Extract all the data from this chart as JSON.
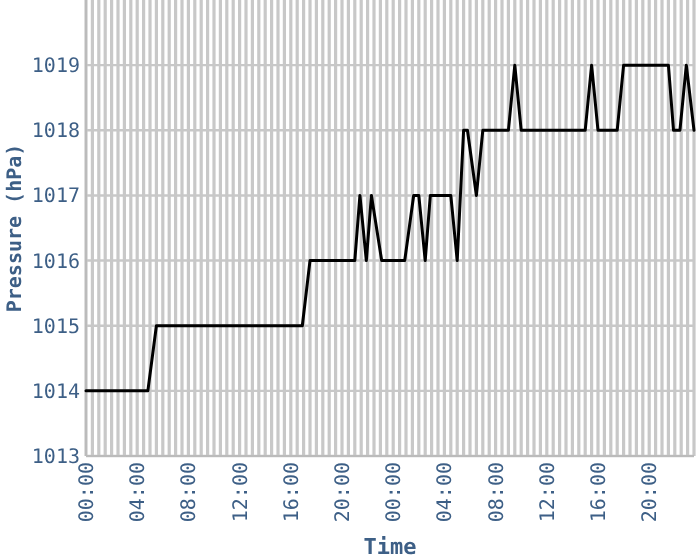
{
  "chart_data": {
    "type": "line",
    "xlabel": "Time",
    "ylabel": "Pressure (hPa)",
    "x": [
      "2000-01-01T00:00",
      "2000-01-01T04:50",
      "2000-01-01T05:30",
      "2000-01-01T16:54",
      "2000-01-01T17:30",
      "2000-01-01T21:00",
      "2000-01-01T21:24",
      "2000-01-01T21:54",
      "2000-01-01T22:18",
      "2000-01-01T23:06",
      "2000-01-02T00:54",
      "2000-01-02T01:36",
      "2000-01-02T02:00",
      "2000-01-02T02:30",
      "2000-01-02T02:54",
      "2000-01-02T04:30",
      "2000-01-02T05:00",
      "2000-01-02T05:30",
      "2000-01-02T05:48",
      "2000-01-02T06:30",
      "2000-01-02T07:00",
      "2000-01-02T09:00",
      "2000-01-02T09:30",
      "2000-01-02T10:00",
      "2000-01-02T15:00",
      "2000-01-02T15:30",
      "2000-01-02T16:00",
      "2000-01-02T17:30",
      "2000-01-02T18:00",
      "2000-01-02T21:30",
      "2000-01-02T21:54",
      "2000-01-02T22:24",
      "2000-01-02T22:54",
      "2000-01-02T23:30"
    ],
    "series": [
      {
        "color": "#000000",
        "values": [
          1014,
          1014,
          1015,
          1015,
          1016,
          1016,
          1017,
          1016,
          1017,
          1016,
          1016,
          1017,
          1017,
          1016,
          1017,
          1017,
          1016,
          1018,
          1018,
          1017,
          1018,
          1018,
          1019,
          1018,
          1018,
          1019,
          1018,
          1018,
          1019,
          1019,
          1018,
          1018,
          1019,
          1018
        ]
      }
    ],
    "xlim": [
      "2000-01-01T00:00",
      "2000-01-02T23:30"
    ],
    "xticks": [
      {
        "value": "2000-01-01T00:00",
        "label": "00:00"
      },
      {
        "value": "2000-01-01T00:30",
        "label": null
      },
      {
        "value": "2000-01-01T01:00",
        "label": null
      },
      {
        "value": "2000-01-01T01:30",
        "label": null
      },
      {
        "value": "2000-01-01T02:00",
        "label": null
      },
      {
        "value": "2000-01-01T02:30",
        "label": null
      },
      {
        "value": "2000-01-01T03:00",
        "label": null
      },
      {
        "value": "2000-01-01T03:30",
        "label": null
      },
      {
        "value": "2000-01-01T04:00",
        "label": "04:00"
      },
      {
        "value": "2000-01-01T04:30",
        "label": null
      },
      {
        "value": "2000-01-01T05:00",
        "label": null
      },
      {
        "value": "2000-01-01T05:30",
        "label": null
      },
      {
        "value": "2000-01-01T06:00",
        "label": null
      },
      {
        "value": "2000-01-01T06:30",
        "label": null
      },
      {
        "value": "2000-01-01T07:00",
        "label": null
      },
      {
        "value": "2000-01-01T07:30",
        "label": null
      },
      {
        "value": "2000-01-01T08:00",
        "label": "08:00"
      },
      {
        "value": "2000-01-01T08:30",
        "label": null
      },
      {
        "value": "2000-01-01T09:00",
        "label": null
      },
      {
        "value": "2000-01-01T09:30",
        "label": null
      },
      {
        "value": "2000-01-01T10:00",
        "label": null
      },
      {
        "value": "2000-01-01T10:30",
        "label": null
      },
      {
        "value": "2000-01-01T11:00",
        "label": null
      },
      {
        "value": "2000-01-01T11:30",
        "label": null
      },
      {
        "value": "2000-01-01T12:00",
        "label": "12:00"
      },
      {
        "value": "2000-01-01T12:30",
        "label": null
      },
      {
        "value": "2000-01-01T13:00",
        "label": null
      },
      {
        "value": "2000-01-01T13:30",
        "label": null
      },
      {
        "value": "2000-01-01T14:00",
        "label": null
      },
      {
        "value": "2000-01-01T14:30",
        "label": null
      },
      {
        "value": "2000-01-01T15:00",
        "label": null
      },
      {
        "value": "2000-01-01T15:30",
        "label": null
      },
      {
        "value": "2000-01-01T16:00",
        "label": "16:00"
      },
      {
        "value": "2000-01-01T16:30",
        "label": null
      },
      {
        "value": "2000-01-01T17:00",
        "label": null
      },
      {
        "value": "2000-01-01T17:30",
        "label": null
      },
      {
        "value": "2000-01-01T18:00",
        "label": null
      },
      {
        "value": "2000-01-01T18:30",
        "label": null
      },
      {
        "value": "2000-01-01T19:00",
        "label": null
      },
      {
        "value": "2000-01-01T19:30",
        "label": null
      },
      {
        "value": "2000-01-01T20:00",
        "label": "20:00"
      },
      {
        "value": "2000-01-01T20:30",
        "label": null
      },
      {
        "value": "2000-01-01T21:00",
        "label": null
      },
      {
        "value": "2000-01-01T21:30",
        "label": null
      },
      {
        "value": "2000-01-01T22:00",
        "label": null
      },
      {
        "value": "2000-01-01T22:30",
        "label": null
      },
      {
        "value": "2000-01-01T23:00",
        "label": null
      },
      {
        "value": "2000-01-01T23:30",
        "label": null
      },
      {
        "value": "2000-01-02T00:00",
        "label": "00:00"
      },
      {
        "value": "2000-01-02T00:30",
        "label": null
      },
      {
        "value": "2000-01-02T01:00",
        "label": null
      },
      {
        "value": "2000-01-02T01:30",
        "label": null
      },
      {
        "value": "2000-01-02T02:00",
        "label": null
      },
      {
        "value": "2000-01-02T02:30",
        "label": null
      },
      {
        "value": "2000-01-02T03:00",
        "label": null
      },
      {
        "value": "2000-01-02T03:30",
        "label": null
      },
      {
        "value": "2000-01-02T04:00",
        "label": "04:00"
      },
      {
        "value": "2000-01-02T04:30",
        "label": null
      },
      {
        "value": "2000-01-02T05:00",
        "label": null
      },
      {
        "value": "2000-01-02T05:30",
        "label": null
      },
      {
        "value": "2000-01-02T06:00",
        "label": null
      },
      {
        "value": "2000-01-02T06:30",
        "label": null
      },
      {
        "value": "2000-01-02T07:00",
        "label": null
      },
      {
        "value": "2000-01-02T07:30",
        "label": null
      },
      {
        "value": "2000-01-02T08:00",
        "label": "08:00"
      },
      {
        "value": "2000-01-02T08:30",
        "label": null
      },
      {
        "value": "2000-01-02T09:00",
        "label": null
      },
      {
        "value": "2000-01-02T09:30",
        "label": null
      },
      {
        "value": "2000-01-02T10:00",
        "label": null
      },
      {
        "value": "2000-01-02T10:30",
        "label": null
      },
      {
        "value": "2000-01-02T11:00",
        "label": null
      },
      {
        "value": "2000-01-02T11:30",
        "label": null
      },
      {
        "value": "2000-01-02T12:00",
        "label": "12:00"
      },
      {
        "value": "2000-01-02T12:30",
        "label": null
      },
      {
        "value": "2000-01-02T13:00",
        "label": null
      },
      {
        "value": "2000-01-02T13:30",
        "label": null
      },
      {
        "value": "2000-01-02T14:00",
        "label": null
      },
      {
        "value": "2000-01-02T14:30",
        "label": null
      },
      {
        "value": "2000-01-02T15:00",
        "label": null
      },
      {
        "value": "2000-01-02T15:30",
        "label": null
      },
      {
        "value": "2000-01-02T16:00",
        "label": "16:00"
      },
      {
        "value": "2000-01-02T16:30",
        "label": null
      },
      {
        "value": "2000-01-02T17:00",
        "label": null
      },
      {
        "value": "2000-01-02T17:30",
        "label": null
      },
      {
        "value": "2000-01-02T18:00",
        "label": null
      },
      {
        "value": "2000-01-02T18:30",
        "label": null
      },
      {
        "value": "2000-01-02T19:00",
        "label": null
      },
      {
        "value": "2000-01-02T19:30",
        "label": null
      },
      {
        "value": "2000-01-02T20:00",
        "label": "20:00"
      },
      {
        "value": "2000-01-02T20:30",
        "label": null
      },
      {
        "value": "2000-01-02T21:00",
        "label": null
      },
      {
        "value": "2000-01-02T21:30",
        "label": null
      },
      {
        "value": "2000-01-02T22:00",
        "label": null
      },
      {
        "value": "2000-01-02T22:30",
        "label": null
      },
      {
        "value": "2000-01-02T23:00",
        "label": null
      },
      {
        "value": "2000-01-02T23:30",
        "label": null
      }
    ],
    "ylim": [
      1013,
      1020
    ],
    "yticks": [
      1013,
      1014,
      1015,
      1016,
      1017,
      1018,
      1019
    ],
    "grid": true,
    "marker": "none",
    "line_style": "solid"
  }
}
